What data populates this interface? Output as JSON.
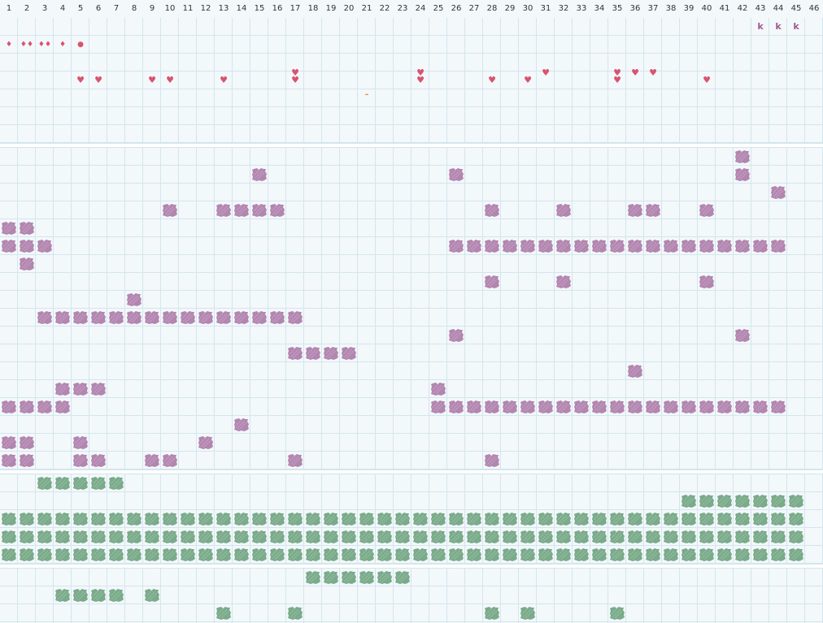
{
  "colors": {
    "background": "#f3f8fb",
    "grid": "#d3e6ec",
    "purple_block": "#b386b0",
    "green_block": "#7aab8a",
    "marker_red": "#d9536f",
    "dash": "#e88a4d",
    "k_letter": "#a05a8e"
  },
  "columns": [
    "1",
    "2",
    "3",
    "4",
    "5",
    "6",
    "7",
    "8",
    "9",
    "10",
    "11",
    "12",
    "13",
    "14",
    "15",
    "16",
    "17",
    "18",
    "19",
    "20",
    "21",
    "22",
    "23",
    "24",
    "25",
    "26",
    "27",
    "28",
    "29",
    "30",
    "31",
    "32",
    "33",
    "34",
    "35",
    "36",
    "37",
    "38",
    "39",
    "40",
    "41",
    "42",
    "43",
    "44",
    "45",
    "46"
  ],
  "markers": [
    {
      "type": "drop",
      "symbol": "♦",
      "col": 1,
      "row": 2
    },
    {
      "type": "drop",
      "symbol": "♦♦",
      "col": 2,
      "row": 2
    },
    {
      "type": "drop",
      "symbol": "♦♦",
      "col": 3,
      "row": 2
    },
    {
      "type": "drop",
      "symbol": "♦",
      "col": 4,
      "row": 2
    },
    {
      "type": "dot",
      "symbol": "●",
      "col": 5,
      "row": 2
    },
    {
      "type": "heart",
      "symbol": "♥",
      "col": 5,
      "row": 4
    },
    {
      "type": "heart",
      "symbol": "♥",
      "col": 6,
      "row": 4
    },
    {
      "type": "heart",
      "symbol": "♥",
      "col": 9,
      "row": 4
    },
    {
      "type": "heart",
      "symbol": "♥",
      "col": 10,
      "row": 4
    },
    {
      "type": "heart",
      "symbol": "♥",
      "col": 13,
      "row": 4
    },
    {
      "type": "heart",
      "symbol": "♥",
      "col": 17,
      "row": 4
    },
    {
      "type": "heart",
      "symbol": "♥",
      "col": 17,
      "row": 3.6
    },
    {
      "type": "heart",
      "symbol": "♥",
      "col": 24,
      "row": 4
    },
    {
      "type": "heart",
      "symbol": "♥",
      "col": 24,
      "row": 3.6
    },
    {
      "type": "heart",
      "symbol": "♥",
      "col": 28,
      "row": 4
    },
    {
      "type": "heart",
      "symbol": "♥",
      "col": 30,
      "row": 4
    },
    {
      "type": "heart",
      "symbol": "♥",
      "col": 31,
      "row": 3.6
    },
    {
      "type": "heart",
      "symbol": "♥",
      "col": 35,
      "row": 4
    },
    {
      "type": "heart",
      "symbol": "♥",
      "col": 35,
      "row": 3.6
    },
    {
      "type": "heart",
      "symbol": "♥",
      "col": 36,
      "row": 3.6
    },
    {
      "type": "heart",
      "symbol": "♥",
      "col": 37,
      "row": 3.6
    },
    {
      "type": "heart",
      "symbol": "♥",
      "col": 40,
      "row": 4
    },
    {
      "type": "dash",
      "symbol": "–",
      "col": 21,
      "row": 4.8
    },
    {
      "type": "letter",
      "symbol": "k",
      "col": 43,
      "row": 1
    },
    {
      "type": "letter",
      "symbol": "k",
      "col": 44,
      "row": 1
    },
    {
      "type": "letter",
      "symbol": "k",
      "col": 45,
      "row": 1
    }
  ],
  "purple_rows": [
    {
      "row": 0,
      "cols": [
        42
      ]
    },
    {
      "row": 1,
      "cols": [
        15,
        26,
        42
      ]
    },
    {
      "row": 2,
      "cols": [
        44
      ]
    },
    {
      "row": 3,
      "cols": [
        10,
        13,
        14,
        15,
        16,
        28,
        32,
        36,
        37,
        40
      ]
    },
    {
      "row": 4,
      "cols": [
        1,
        2
      ]
    },
    {
      "row": 5,
      "cols": [
        1,
        2,
        3,
        26,
        27,
        28,
        29,
        30,
        31,
        32,
        33,
        34,
        35,
        36,
        37,
        38,
        39,
        40,
        41,
        42,
        43,
        44
      ]
    },
    {
      "row": 6,
      "cols": [
        2
      ]
    },
    {
      "row": 7,
      "cols": [
        28,
        32,
        40
      ]
    },
    {
      "row": 8,
      "cols": [
        8
      ]
    },
    {
      "row": 9,
      "cols": [
        3,
        4,
        5,
        6,
        7,
        8,
        9,
        10,
        11,
        12,
        13,
        14,
        15,
        16,
        17
      ]
    },
    {
      "row": 10,
      "cols": [
        26,
        42
      ]
    },
    {
      "row": 11,
      "cols": [
        17,
        18,
        19,
        20
      ]
    },
    {
      "row": 12,
      "cols": [
        36
      ]
    },
    {
      "row": 13,
      "cols": [
        4,
        5,
        6,
        25
      ]
    },
    {
      "row": 14,
      "cols": [
        1,
        2,
        3,
        4,
        25,
        26,
        27,
        28,
        29,
        30,
        31,
        32,
        33,
        34,
        35,
        36,
        37,
        38,
        39,
        40,
        41,
        42,
        43,
        44
      ]
    },
    {
      "row": 15,
      "cols": [
        14
      ]
    },
    {
      "row": 16,
      "cols": [
        1,
        2,
        5,
        12
      ]
    },
    {
      "row": 17,
      "cols": [
        1,
        2,
        5,
        6,
        9,
        10,
        17,
        28
      ]
    }
  ],
  "green_rows": [
    {
      "row": 0,
      "cols": [
        3,
        4,
        5,
        6,
        7
      ]
    },
    {
      "row": 1,
      "cols": [
        39,
        40,
        41,
        42,
        43,
        44,
        45
      ]
    },
    {
      "row": 2,
      "cols": [
        1,
        2,
        3,
        4,
        5,
        6,
        7,
        8,
        9,
        10,
        11,
        12,
        13,
        14,
        15,
        16,
        17,
        18,
        19,
        20,
        21,
        22,
        23,
        24,
        25,
        26,
        27,
        28,
        29,
        30,
        31,
        32,
        33,
        34,
        35,
        36,
        37,
        38,
        39,
        40,
        41,
        42,
        43,
        44,
        45
      ]
    },
    {
      "row": 3,
      "cols": [
        1,
        2,
        3,
        4,
        5,
        6,
        7,
        8,
        9,
        10,
        11,
        12,
        13,
        14,
        15,
        16,
        17,
        18,
        19,
        20,
        21,
        22,
        23,
        24,
        25,
        26,
        27,
        28,
        29,
        30,
        31,
        32,
        33,
        34,
        35,
        36,
        37,
        38,
        39,
        40,
        41,
        42,
        43,
        44,
        45
      ]
    },
    {
      "row": 4,
      "cols": [
        1,
        2,
        3,
        4,
        5,
        6,
        7,
        8,
        9,
        10,
        11,
        12,
        13,
        14,
        15,
        16,
        17,
        18,
        19,
        20,
        21,
        22,
        23,
        24,
        25,
        26,
        27,
        28,
        29,
        30,
        31,
        32,
        33,
        34,
        35,
        36,
        37,
        38,
        39,
        40,
        41,
        42,
        43,
        44,
        45
      ]
    }
  ],
  "green_rows_bottom": [
    {
      "row": 0,
      "cols": [
        18,
        19,
        20,
        21,
        22,
        23
      ]
    },
    {
      "row": 1,
      "cols": [
        4,
        5,
        6,
        7,
        9
      ]
    },
    {
      "row": 2,
      "cols": [
        13,
        17,
        28,
        30,
        35
      ]
    }
  ]
}
